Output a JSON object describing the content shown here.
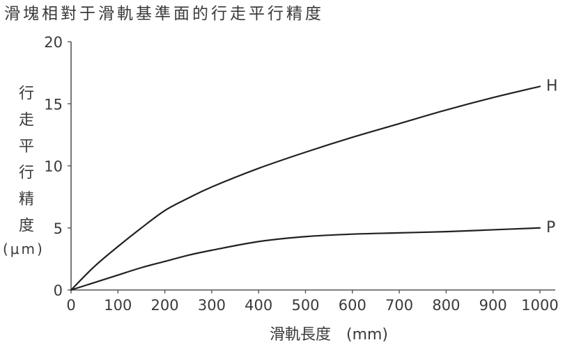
{
  "chart_data": {
    "type": "line",
    "title": "滑塊相對于滑軌基準面的行走平行精度",
    "xlabel": "滑軌長度　(mm)",
    "ylabel": "行走平行精度",
    "yunit": "(μm)",
    "xlim": [
      0,
      1000
    ],
    "ylim": [
      0,
      20
    ],
    "xticks": [
      0,
      100,
      200,
      300,
      400,
      500,
      600,
      700,
      800,
      900,
      1000
    ],
    "yticks": [
      0,
      5,
      10,
      15,
      20
    ],
    "grid": false,
    "x": [
      0,
      50,
      100,
      150,
      200,
      250,
      300,
      400,
      500,
      600,
      700,
      800,
      900,
      1000
    ],
    "series": [
      {
        "name": "H",
        "values": [
          0,
          1.9,
          3.5,
          5.0,
          6.4,
          7.4,
          8.3,
          9.8,
          11.1,
          12.3,
          13.4,
          14.5,
          15.5,
          16.4
        ]
      },
      {
        "name": "P",
        "values": [
          0,
          0.6,
          1.2,
          1.8,
          2.3,
          2.8,
          3.2,
          3.9,
          4.3,
          4.5,
          4.6,
          4.7,
          4.85,
          5.0
        ]
      }
    ],
    "colors": {
      "line": "#231f20",
      "axis": "#555555",
      "text": "#3a3a3a"
    }
  }
}
